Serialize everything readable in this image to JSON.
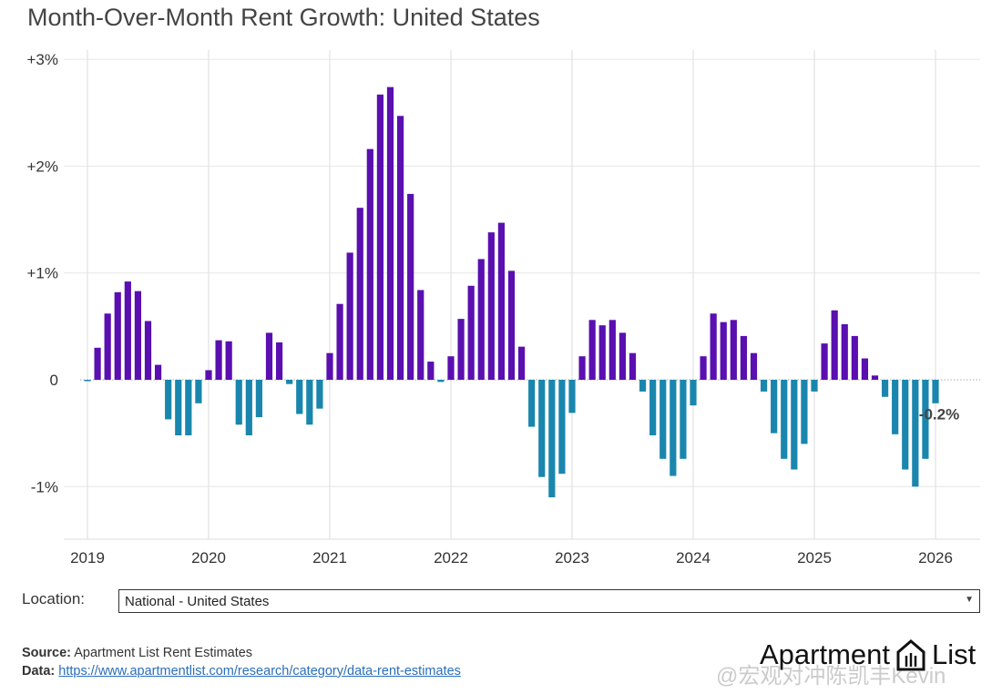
{
  "chart_data": {
    "type": "bar",
    "title": "Month-Over-Month Rent Growth: United States",
    "xlabel": "",
    "ylabel": "",
    "ylim": [
      -1.5,
      3.0
    ],
    "x_tick_labels": [
      "2019",
      "2020",
      "2021",
      "2022",
      "2023",
      "2024",
      "2025",
      "2026"
    ],
    "y_tick_labels": [
      "+3%",
      "+2%",
      "+1%",
      "0",
      "-1%"
    ],
    "y_ticks": [
      3,
      2,
      1,
      0,
      -1
    ],
    "grid": true,
    "start_month": "2019-01",
    "colors": {
      "positive": "#5a0fb0",
      "negative": "#1a86ad"
    },
    "values": [
      -0.01,
      0.3,
      0.62,
      0.82,
      0.92,
      0.83,
      0.55,
      0.14,
      -0.37,
      -0.52,
      -0.52,
      -0.22,
      0.09,
      0.37,
      0.36,
      -0.42,
      -0.52,
      -0.35,
      0.44,
      0.35,
      -0.04,
      -0.32,
      -0.42,
      -0.27,
      0.25,
      0.71,
      1.19,
      1.61,
      2.16,
      2.67,
      2.74,
      2.47,
      1.74,
      0.84,
      0.17,
      -0.02,
      0.22,
      0.57,
      0.88,
      1.13,
      1.38,
      1.47,
      1.02,
      0.31,
      -0.44,
      -0.91,
      -1.1,
      -0.88,
      -0.31,
      0.22,
      0.56,
      0.51,
      0.56,
      0.44,
      0.25,
      -0.11,
      -0.52,
      -0.74,
      -0.9,
      -0.74,
      -0.24,
      0.22,
      0.62,
      0.54,
      0.56,
      0.41,
      0.25,
      -0.11,
      -0.5,
      -0.74,
      -0.84,
      -0.6,
      -0.11,
      0.34,
      0.65,
      0.52,
      0.41,
      0.2,
      0.04,
      -0.16,
      -0.51,
      -0.84,
      -1.0,
      -0.74,
      -0.22
    ],
    "annotation": "-0.2%"
  },
  "location": {
    "label": "Location:",
    "selected": "National - United States"
  },
  "footer": {
    "source_label": "Source:",
    "source_text": "Apartment List Rent Estimates",
    "data_label": "Data:",
    "data_link": "https://www.apartmentlist.com/research/category/data-rent-estimates"
  },
  "logo": {
    "text_left": "Apartment",
    "text_right": "List"
  },
  "watermark": "@宏观对冲陈凯丰Kevin"
}
